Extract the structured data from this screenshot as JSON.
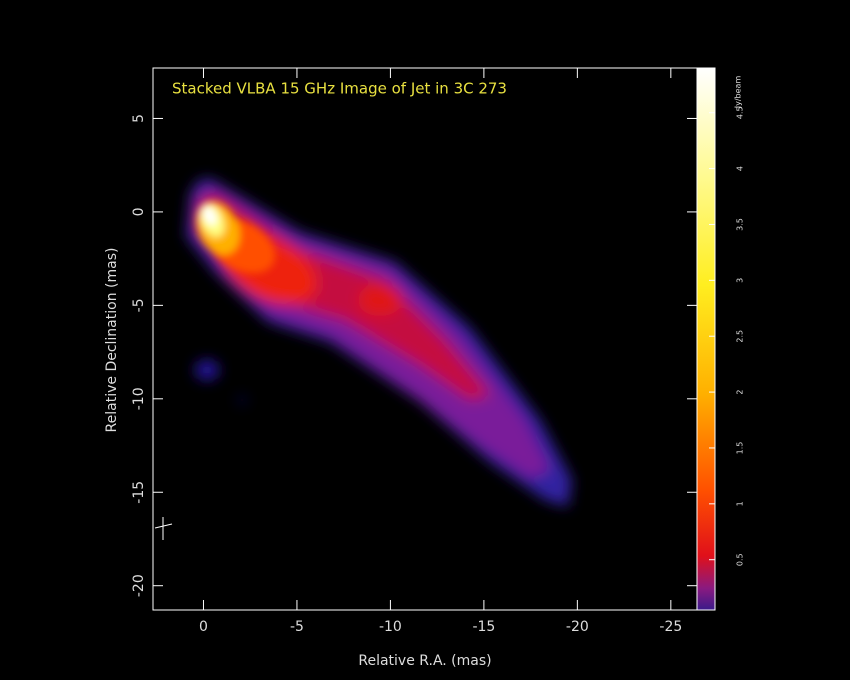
{
  "chart_data": {
    "type": "image",
    "title": "Stacked VLBA 15 GHz Image of Jet in 3C 273",
    "x_label": "Relative R.A. (mas)",
    "y_label": "Relative Declination (mas)",
    "xlim": [
      2.7,
      -26.4
    ],
    "xticks": [
      0,
      -5,
      -10,
      -15,
      -20,
      -25
    ],
    "ylim": [
      -21.3,
      7.7
    ],
    "yticks": [
      5,
      0,
      -5,
      -10,
      -15,
      -20
    ],
    "colorbar": {
      "label": "Jy/beam",
      "lim": [
        0.05,
        4.9
      ],
      "ticks": [
        0.5,
        1,
        1.5,
        2,
        2.5,
        3,
        3.5,
        4,
        4.5
      ]
    }
  }
}
